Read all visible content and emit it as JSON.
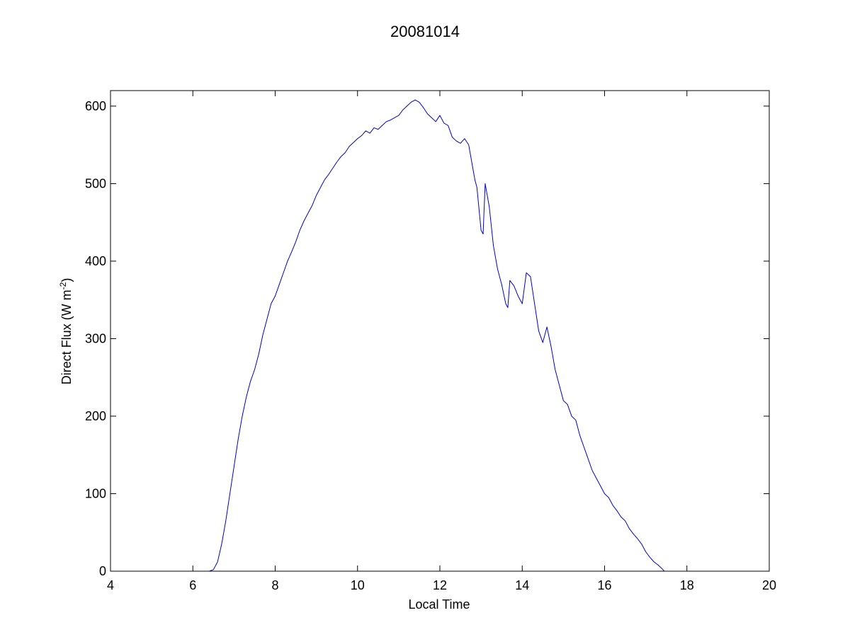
{
  "chart_data": {
    "type": "line",
    "title": "20081014",
    "xlabel": "Local Time",
    "ylabel_main": "Direct Flux (W m",
    "ylabel_sup": "-2",
    "ylabel_close": ")",
    "xlim": [
      4,
      20
    ],
    "ylim": [
      0,
      620
    ],
    "xticks": [
      4,
      6,
      8,
      10,
      12,
      14,
      16,
      18,
      20
    ],
    "yticks": [
      0,
      100,
      200,
      300,
      400,
      500,
      600
    ],
    "grid": false,
    "line_color": "#0000c8",
    "series": [
      {
        "x": [
          4.0,
          4.1,
          4.2,
          4.3,
          4.4,
          4.5,
          5.7,
          5.8,
          5.9,
          6.0,
          6.1,
          6.2,
          6.3,
          6.4,
          6.5,
          6.6,
          6.7,
          6.8,
          6.9,
          7.0,
          7.1,
          7.2,
          7.3,
          7.4,
          7.5,
          7.6,
          7.7,
          7.8,
          7.9,
          8.0,
          8.1,
          8.2,
          8.3,
          8.4,
          8.5,
          8.6,
          8.7,
          8.8,
          8.9,
          9.0,
          9.1,
          9.2,
          9.3,
          9.4,
          9.5,
          9.6,
          9.7,
          9.8,
          9.9,
          10.0,
          10.1,
          10.2,
          10.3,
          10.4,
          10.5,
          10.6,
          10.7,
          10.8,
          10.9,
          11.0,
          11.1,
          11.2,
          11.3,
          11.4,
          11.5,
          11.6,
          11.7,
          11.8,
          11.9,
          12.0,
          12.1,
          12.2,
          12.3,
          12.4,
          12.5,
          12.6,
          12.7,
          12.8,
          12.85,
          12.9,
          13.0,
          13.05,
          13.1,
          13.2,
          13.3,
          13.4,
          13.45,
          13.5,
          13.6,
          13.65,
          13.7,
          13.8,
          13.9,
          14.0,
          14.1,
          14.2,
          14.3,
          14.4,
          14.5,
          14.6,
          14.7,
          14.8,
          14.9,
          15.0,
          15.1,
          15.2,
          15.3,
          15.4,
          15.5,
          15.6,
          15.7,
          15.8,
          15.9,
          16.0,
          16.1,
          16.2,
          16.3,
          16.4,
          16.5,
          16.6,
          16.7,
          16.8,
          16.9,
          17.0,
          17.1,
          17.2,
          17.3,
          17.4,
          17.45
        ],
        "y": [
          0,
          0,
          0,
          0,
          0,
          0,
          0,
          0,
          0,
          0,
          0,
          0,
          0,
          0,
          2,
          12,
          35,
          65,
          100,
          135,
          170,
          200,
          225,
          245,
          260,
          280,
          305,
          325,
          345,
          355,
          370,
          385,
          400,
          412,
          425,
          440,
          452,
          462,
          472,
          485,
          495,
          505,
          512,
          520,
          528,
          535,
          540,
          548,
          553,
          558,
          562,
          568,
          565,
          572,
          570,
          575,
          580,
          582,
          585,
          588,
          595,
          600,
          605,
          608,
          605,
          598,
          590,
          585,
          580,
          588,
          578,
          575,
          560,
          555,
          552,
          558,
          550,
          520,
          505,
          495,
          440,
          435,
          500,
          470,
          420,
          390,
          380,
          370,
          345,
          340,
          375,
          368,
          355,
          345,
          385,
          380,
          345,
          310,
          295,
          315,
          290,
          260,
          240,
          220,
          215,
          200,
          195,
          175,
          160,
          145,
          130,
          120,
          110,
          100,
          95,
          85,
          78,
          70,
          65,
          55,
          48,
          42,
          35,
          25,
          18,
          12,
          8,
          3,
          0
        ]
      }
    ]
  }
}
